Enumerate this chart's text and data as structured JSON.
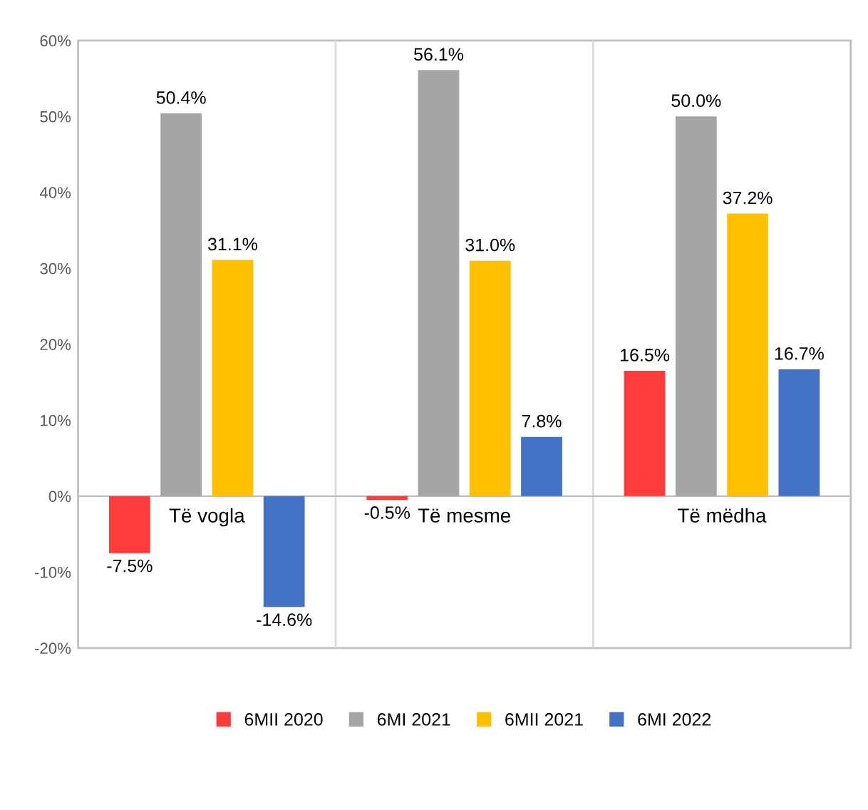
{
  "chart_data": {
    "type": "bar",
    "categories": [
      "Të vogla",
      "Të mesme",
      "Të mëdha"
    ],
    "series": [
      {
        "name": "6MII 2020",
        "color": "#ff3b3b",
        "values": [
          -7.5,
          -0.5,
          16.5
        ],
        "value_labels": [
          "-7.5%",
          "-0.5%",
          "16.5%"
        ]
      },
      {
        "name": "6MI 2021",
        "color": "#a5a5a5",
        "values": [
          50.4,
          56.1,
          50.0
        ],
        "value_labels": [
          "50.4%",
          "56.1%",
          "50.0%"
        ]
      },
      {
        "name": "6MII 2021",
        "color": "#ffc000",
        "values": [
          31.1,
          31.0,
          37.2
        ],
        "value_labels": [
          "31.1%",
          "31.0%",
          "37.2%"
        ]
      },
      {
        "name": "6MI 2022",
        "color": "#4472c4",
        "values": [
          -14.6,
          7.8,
          16.7
        ],
        "value_labels": [
          "-14.6%",
          "7.8%",
          "16.7%"
        ]
      }
    ],
    "ylim": [
      -20,
      60
    ],
    "yticks": [
      {
        "value": -20,
        "label": "-20%"
      },
      {
        "value": -10,
        "label": "-10%"
      },
      {
        "value": 0,
        "label": "0%"
      },
      {
        "value": 10,
        "label": "10%"
      },
      {
        "value": 20,
        "label": "20%"
      },
      {
        "value": 30,
        "label": "30%"
      },
      {
        "value": 40,
        "label": "40%"
      },
      {
        "value": 50,
        "label": "50%"
      },
      {
        "value": 60,
        "label": "60%"
      }
    ],
    "grid": "x",
    "legend": "bottom"
  }
}
